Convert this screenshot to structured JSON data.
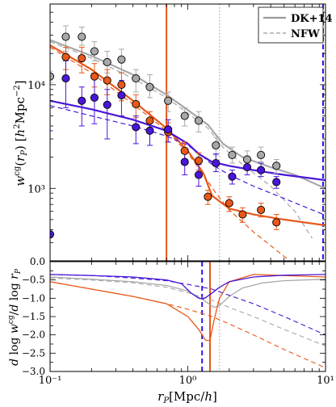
{
  "chart_data": [
    {
      "type": "scatter",
      "panel": "top",
      "xscale": "log",
      "yscale": "log",
      "xlim": [
        0.1,
        10
      ],
      "ylim": [
        200,
        60000
      ],
      "ylabel": "w^cg(r_P) [h^2 Mpc^-2]",
      "ytick_labels": [
        {
          "value": 1000,
          "label": "10³"
        },
        {
          "value": 10000,
          "label": "10⁴"
        }
      ],
      "legend": {
        "position": "top-right",
        "entries": [
          {
            "label": "DK+14",
            "color": "#999999",
            "style": "solid"
          },
          {
            "label": "NFW",
            "color": "#999999",
            "style": "dashed"
          }
        ]
      },
      "vlines": [
        {
          "x": 0.7,
          "color": "#e8581a",
          "style": "solid"
        },
        {
          "x": 1.7,
          "color": "#aaaaaa",
          "style": "dotted"
        },
        {
          "x": 9.6,
          "color": "#2b16e8",
          "style": "dashed"
        }
      ],
      "series": [
        {
          "color": "#a8a8a8",
          "points": [
            {
              "x": 0.1,
              "y": 12000,
              "lo": 10500,
              "hi": 13500
            },
            {
              "x": 0.13,
              "y": 29000,
              "lo": 21000,
              "hi": 37000
            },
            {
              "x": 0.17,
              "y": 29000,
              "lo": 24000,
              "hi": 36000
            },
            {
              "x": 0.21,
              "y": 21000,
              "lo": 17000,
              "hi": 26000
            },
            {
              "x": 0.26,
              "y": 16500,
              "lo": 13000,
              "hi": 21000
            },
            {
              "x": 0.33,
              "y": 17500,
              "lo": 13000,
              "hi": 22000
            },
            {
              "x": 0.42,
              "y": 11500,
              "lo": 8500,
              "hi": 14000
            },
            {
              "x": 0.53,
              "y": 9500,
              "lo": 7500,
              "hi": 12500
            },
            {
              "x": 0.72,
              "y": 7000,
              "lo": 5500,
              "hi": 8500
            },
            {
              "x": 0.95,
              "y": 5000,
              "lo": 4000,
              "hi": 6000
            },
            {
              "x": 1.2,
              "y": 4500,
              "lo": 3500,
              "hi": 5500
            },
            {
              "x": 1.6,
              "y": 2600,
              "lo": 2100,
              "hi": 3100
            },
            {
              "x": 2.1,
              "y": 2100,
              "lo": 1750,
              "hi": 2500
            },
            {
              "x": 2.7,
              "y": 1900,
              "lo": 1600,
              "hi": 2300
            },
            {
              "x": 3.4,
              "y": 2100,
              "lo": 1800,
              "hi": 2500
            },
            {
              "x": 4.4,
              "y": 1650,
              "lo": 1400,
              "hi": 1900
            }
          ],
          "model_DK14": {
            "x": [
              0.1,
              0.2,
              0.4,
              0.7,
              1.0,
              1.4,
              1.8,
              2.5,
              4.0,
              6.0,
              10.0
            ],
            "y": [
              27000,
              19000,
              12500,
              8000,
              5700,
              4100,
              2700,
              2000,
              1600,
              1350,
              1000
            ]
          },
          "model_NFW": {
            "x": [
              0.1,
              0.2,
              0.4,
              0.7,
              1.0,
              1.4,
              1.8,
              2.5,
              4.0,
              6.0,
              8.0
            ],
            "y": [
              26000,
              18000,
              11500,
              7500,
              5300,
              3800,
              2500,
              1700,
              1050,
              600,
              330
            ]
          }
        },
        {
          "color": "#e8581a",
          "points": [
            {
              "x": 0.13,
              "y": 18500,
              "lo": 14000,
              "hi": 23000
            },
            {
              "x": 0.17,
              "y": 18000,
              "lo": 13000,
              "hi": 23000
            },
            {
              "x": 0.21,
              "y": 12000,
              "lo": 9500,
              "hi": 16000
            },
            {
              "x": 0.26,
              "y": 11000,
              "lo": 8000,
              "hi": 14000
            },
            {
              "x": 0.33,
              "y": 10000,
              "lo": 7000,
              "hi": 13000
            },
            {
              "x": 0.42,
              "y": 6500,
              "lo": 4800,
              "hi": 8000
            },
            {
              "x": 0.53,
              "y": 4500,
              "lo": 3500,
              "hi": 5500
            },
            {
              "x": 0.72,
              "y": 3500,
              "lo": 2800,
              "hi": 4300
            },
            {
              "x": 0.95,
              "y": 2300,
              "lo": 1900,
              "hi": 2800
            },
            {
              "x": 1.2,
              "y": 1850,
              "lo": 1500,
              "hi": 2200
            },
            {
              "x": 1.4,
              "y": 830,
              "lo": 700,
              "hi": 960
            },
            {
              "x": 2.0,
              "y": 720,
              "lo": 600,
              "hi": 830
            },
            {
              "x": 2.5,
              "y": 560,
              "lo": 470,
              "hi": 650
            },
            {
              "x": 3.4,
              "y": 620,
              "lo": 530,
              "hi": 720
            },
            {
              "x": 4.4,
              "y": 470,
              "lo": 400,
              "hi": 560
            }
          ],
          "model_DK14": {
            "x": [
              0.1,
              0.2,
              0.4,
              0.7,
              1.0,
              1.3,
              1.5,
              2.0,
              3.0,
              5.0,
              10.0
            ],
            "y": [
              24000,
              14000,
              7000,
              3800,
              2300,
              1400,
              850,
              640,
              560,
              500,
              440
            ]
          },
          "model_NFW": {
            "x": [
              0.1,
              0.2,
              0.4,
              0.7,
              1.0,
              1.3,
              1.6,
              2.0,
              3.0,
              4.0,
              5.5
            ],
            "y": [
              23000,
              13000,
              6500,
              3600,
              2200,
              1350,
              900,
              620,
              380,
              280,
              200
            ]
          }
        },
        {
          "color": "#4a16d8",
          "points": [
            {
              "x": 0.1,
              "y": 360,
              "lo": 200,
              "hi": 3600
            },
            {
              "x": 0.13,
              "y": 11500,
              "lo": 6000,
              "hi": 17000
            },
            {
              "x": 0.17,
              "y": 7000,
              "lo": 4000,
              "hi": 9500
            },
            {
              "x": 0.21,
              "y": 7500,
              "lo": 4200,
              "hi": 12000
            },
            {
              "x": 0.26,
              "y": 6400,
              "lo": 3000,
              "hi": 9000
            },
            {
              "x": 0.33,
              "y": 7900,
              "lo": 5000,
              "hi": 11000
            },
            {
              "x": 0.42,
              "y": 3900,
              "lo": 2700,
              "hi": 5000
            },
            {
              "x": 0.53,
              "y": 3600,
              "lo": 2600,
              "hi": 4600
            },
            {
              "x": 0.72,
              "y": 3700,
              "lo": 2800,
              "hi": 4600
            },
            {
              "x": 0.95,
              "y": 1800,
              "lo": 1350,
              "hi": 2300
            },
            {
              "x": 1.2,
              "y": 1350,
              "lo": 1050,
              "hi": 1700
            },
            {
              "x": 1.6,
              "y": 1750,
              "lo": 1450,
              "hi": 2150
            },
            {
              "x": 2.1,
              "y": 1300,
              "lo": 1100,
              "hi": 1500
            },
            {
              "x": 2.7,
              "y": 1600,
              "lo": 1350,
              "hi": 1850
            },
            {
              "x": 3.4,
              "y": 1500,
              "lo": 1300,
              "hi": 1750
            },
            {
              "x": 4.4,
              "y": 1150,
              "lo": 1000,
              "hi": 1300
            }
          ],
          "model_DK14": {
            "x": [
              0.1,
              0.2,
              0.4,
              0.7,
              1.0,
              1.2,
              1.5,
              2.0,
              3.0,
              5.0,
              10.0
            ],
            "y": [
              7000,
              5800,
              4600,
              3600,
              2700,
              2150,
              1800,
              1650,
              1500,
              1350,
              1200
            ]
          },
          "model_NFW": {
            "x": [
              0.1,
              0.2,
              0.4,
              0.7,
              1.0,
              1.2,
              1.5,
              2.0,
              3.0,
              5.0,
              10.0
            ],
            "y": [
              6300,
              5000,
              4000,
              3200,
              2600,
              2200,
              1700,
              1350,
              1050,
              800,
              550
            ]
          }
        }
      ]
    },
    {
      "type": "line",
      "panel": "bottom",
      "xscale": "log",
      "xlim": [
        0.1,
        10
      ],
      "ylim": [
        -3.0,
        0.0
      ],
      "xlabel": "r_P [Mpc/h]",
      "ylabel": "d log w^cg / d log r_P",
      "xtick_labels": [
        {
          "value": 0.1,
          "label": "10⁻¹"
        },
        {
          "value": 1,
          "label": "10⁰"
        },
        {
          "value": 10,
          "label": "10¹"
        }
      ],
      "ytick_labels": [
        {
          "value": -0.5,
          "label": "−0.5"
        },
        {
          "value": -1.0,
          "label": "−1.0"
        },
        {
          "value": -1.5,
          "label": "−1.5"
        },
        {
          "value": -2.0,
          "label": "−2.0"
        },
        {
          "value": -2.5,
          "label": "−2.5"
        },
        {
          "value": -3.0,
          "label": "−3.0"
        }
      ],
      "top_panel_ytick_label": {
        "value": 0.0,
        "label": "0.0"
      },
      "vlines": [
        {
          "x": 1.45,
          "color": "#e8581a",
          "style": "solid"
        },
        {
          "x": 1.7,
          "color": "#aaaaaa",
          "style": "dotted"
        },
        {
          "x": 1.27,
          "color": "#2b16e8",
          "style": "dashed"
        }
      ],
      "series": [
        {
          "color": "#a8a8a8",
          "DK14": {
            "x": [
              0.1,
              0.2,
              0.4,
              0.7,
              1.0,
              1.3,
              1.55,
              1.7,
              2.0,
              2.5,
              3.5,
              5.0,
              10.0
            ],
            "y": [
              -0.42,
              -0.48,
              -0.55,
              -0.65,
              -0.8,
              -1.05,
              -1.25,
              -1.2,
              -0.95,
              -0.72,
              -0.58,
              -0.52,
              -0.48
            ]
          },
          "NFW": {
            "x": [
              0.1,
              0.2,
              0.4,
              0.7,
              1.0,
              1.5,
              2.0,
              3.0,
              5.0,
              10.0
            ],
            "y": [
              -0.45,
              -0.5,
              -0.58,
              -0.7,
              -0.85,
              -1.05,
              -1.25,
              -1.5,
              -1.85,
              -2.3
            ]
          }
        },
        {
          "color": "#e8581a",
          "DK14": {
            "x": [
              0.1,
              0.2,
              0.4,
              0.7,
              1.0,
              1.2,
              1.35,
              1.45,
              1.55,
              1.7,
              2.0,
              3.0,
              5.0,
              10.0
            ],
            "y": [
              -0.55,
              -0.75,
              -0.95,
              -1.15,
              -1.5,
              -1.85,
              -2.15,
              -2.15,
              -1.6,
              -1.0,
              -0.55,
              -0.35,
              -0.38,
              -0.42
            ]
          },
          "NFW": {
            "x": [
              0.1,
              0.2,
              0.4,
              0.7,
              1.0,
              1.5,
              2.0,
              3.0,
              5.0,
              10.0
            ],
            "y": [
              -0.55,
              -0.75,
              -0.95,
              -1.15,
              -1.3,
              -1.5,
              -1.7,
              -2.0,
              -2.4,
              -2.9
            ]
          }
        },
        {
          "color": "#4a16d8",
          "DK14": {
            "x": [
              0.1,
              0.2,
              0.4,
              0.7,
              0.9,
              1.05,
              1.2,
              1.3,
              1.45,
              1.7,
              2.0,
              3.0,
              5.0,
              10.0
            ],
            "y": [
              -0.35,
              -0.38,
              -0.42,
              -0.5,
              -0.6,
              -0.85,
              -1.0,
              -1.02,
              -0.9,
              -0.7,
              -0.55,
              -0.42,
              -0.37,
              -0.35
            ]
          },
          "NFW": {
            "x": [
              0.1,
              0.2,
              0.4,
              0.7,
              1.0,
              1.5,
              2.0,
              3.0,
              5.0,
              10.0
            ],
            "y": [
              -0.35,
              -0.38,
              -0.45,
              -0.52,
              -0.62,
              -0.75,
              -0.92,
              -1.15,
              -1.5,
              -2.0
            ]
          }
        }
      ]
    }
  ]
}
